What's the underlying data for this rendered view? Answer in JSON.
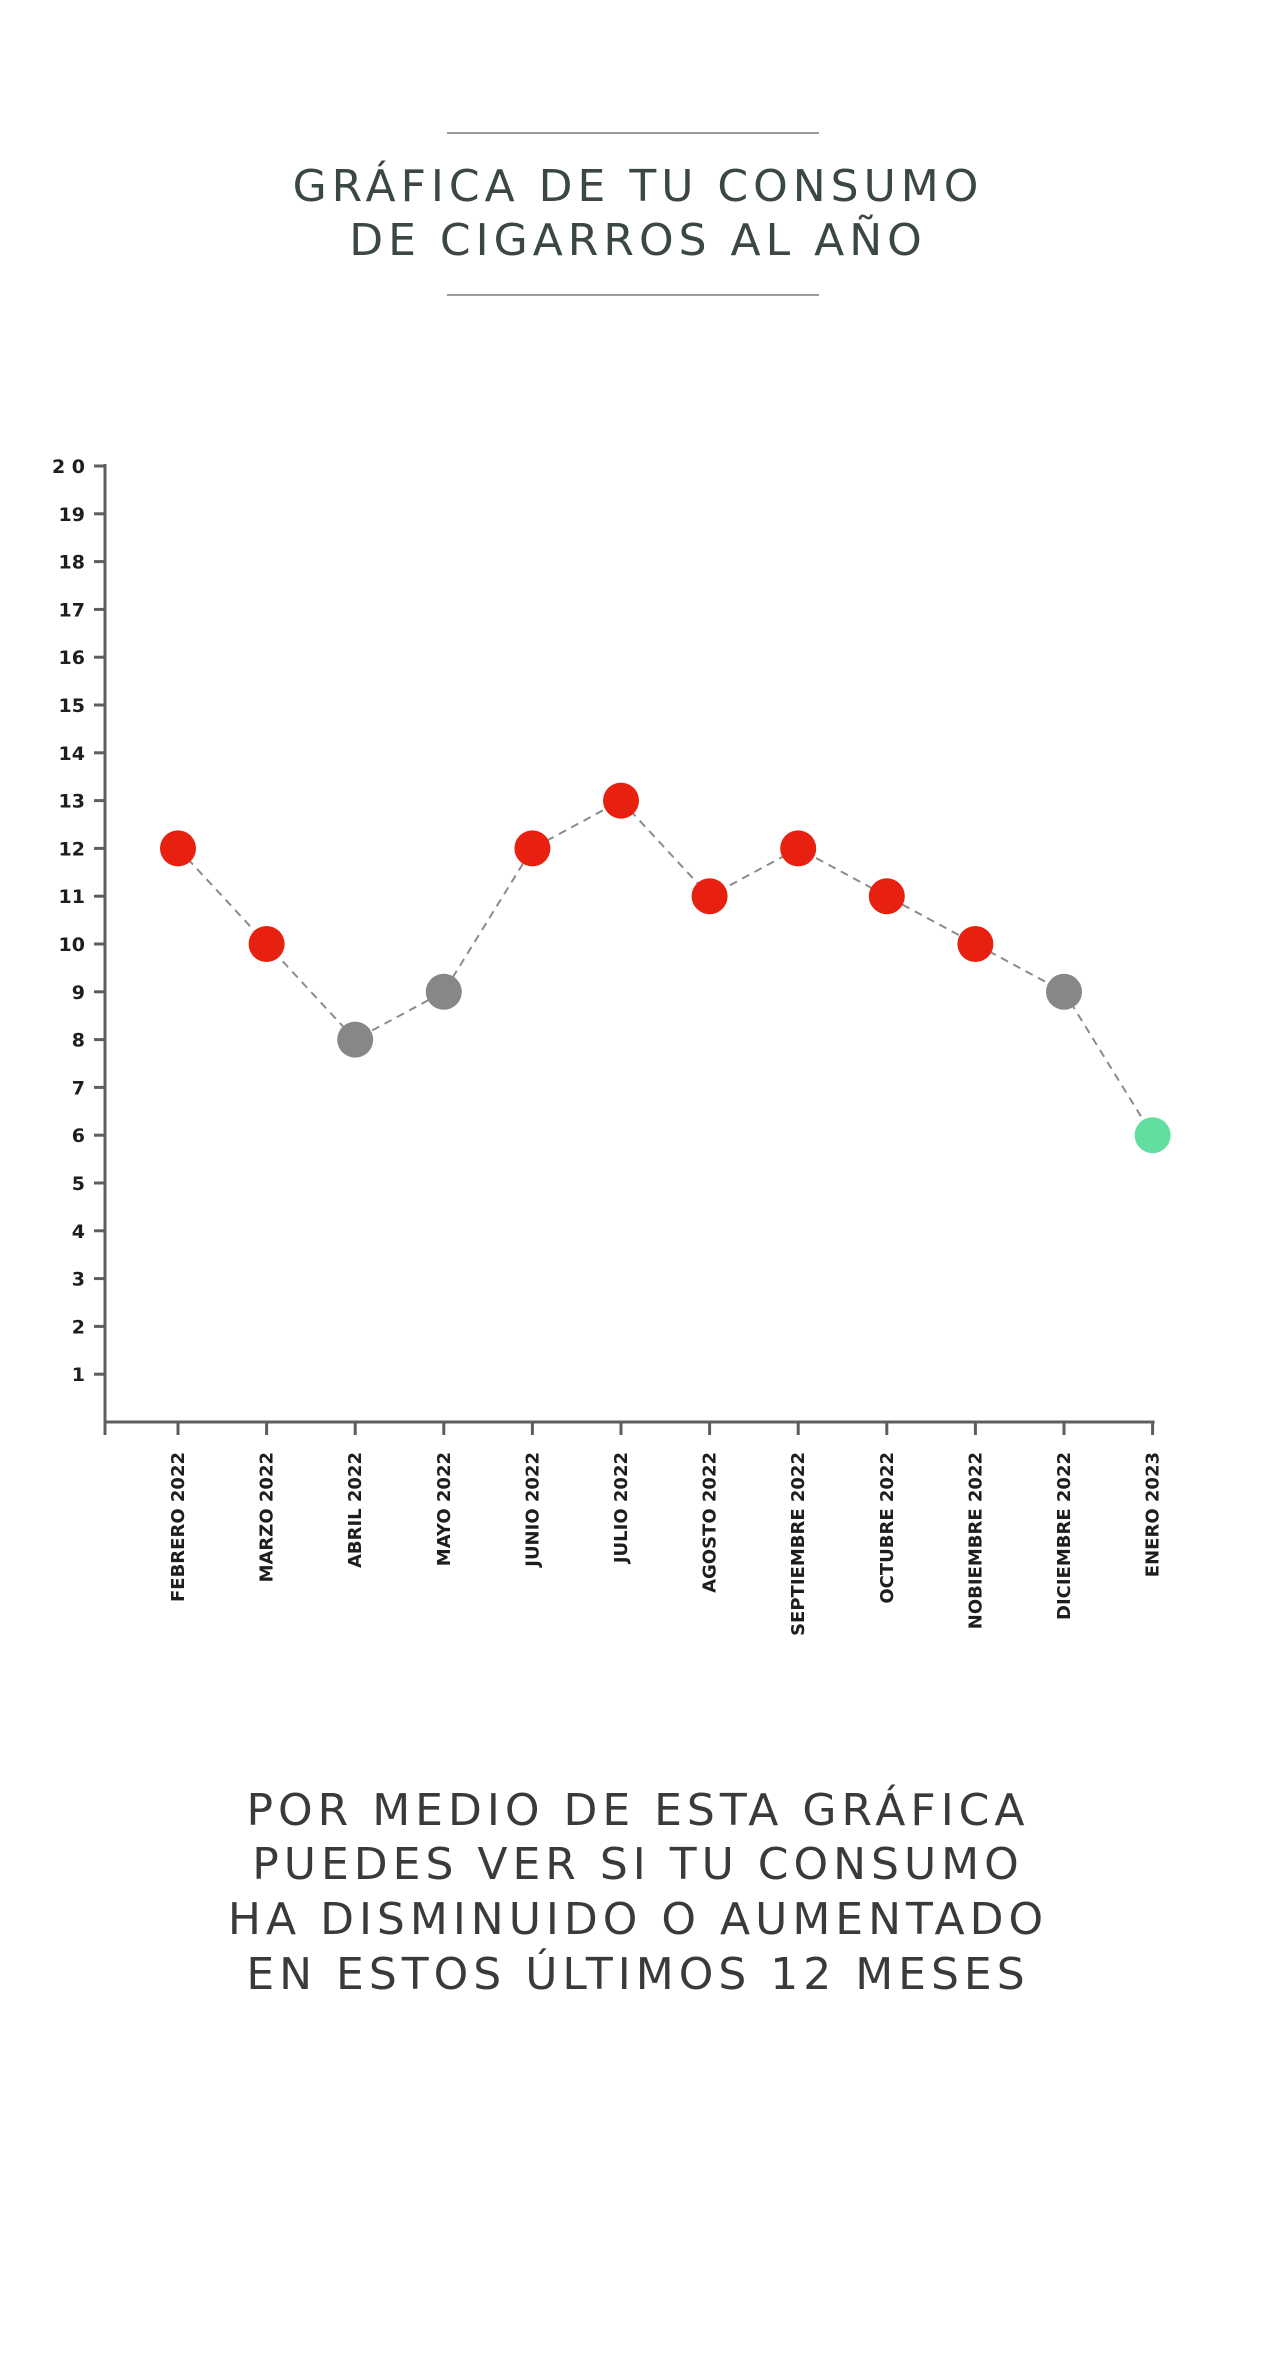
{
  "header": {
    "title_line1": "GRÁFICA DE TU CONSUMO",
    "title_line2": "DE CIGARROS AL AÑO"
  },
  "caption": {
    "line1": "POR MEDIO DE ESTA GRÁFICA",
    "line2": "PUEDES VER SI TU CONSUMO",
    "line3": "HA DISMINUIDO O AUMENTADO",
    "line4": "EN ESTOS ÚLTIMOS 12 MESES"
  },
  "colors": {
    "increase": "#e8200f",
    "neutral": "#868888",
    "decrease": "#62dea0",
    "axis": "#5c5f5e",
    "line": "#8a8c8b"
  },
  "chart_data": {
    "type": "line",
    "title": "GRÁFICA DE TU CONSUMO DE CIGARROS AL AÑO",
    "xlabel": "",
    "ylabel": "",
    "ylim": [
      0,
      20
    ],
    "yticks": [
      "1",
      "2",
      "3",
      "4",
      "5",
      "6",
      "7",
      "8",
      "9",
      "10",
      "11",
      "12",
      "13",
      "14",
      "15",
      "16",
      "17",
      "18",
      "19",
      "2 0"
    ],
    "categories": [
      "FEBRERO 2022",
      "MARZO 2022",
      "ABRIL 2022",
      "MAYO 2022",
      "JUNIO 2022",
      "JULIO 2022",
      "AGOSTO 2022",
      "SEPTIEMBRE 2022",
      "OCTUBRE 2022",
      "NOBIEMBRE 2022",
      "DICIEMBRE 2022",
      "ENERO 2023"
    ],
    "series": [
      {
        "values": [
          12,
          10,
          8,
          9,
          12,
          13,
          11,
          12,
          11,
          10,
          9,
          6
        ],
        "point_colors": [
          "increase",
          "increase",
          "neutral",
          "neutral",
          "increase",
          "increase",
          "increase",
          "increase",
          "increase",
          "increase",
          "neutral",
          "decrease"
        ]
      }
    ],
    "line_style": "dashed",
    "grid": false,
    "legend": "none"
  }
}
